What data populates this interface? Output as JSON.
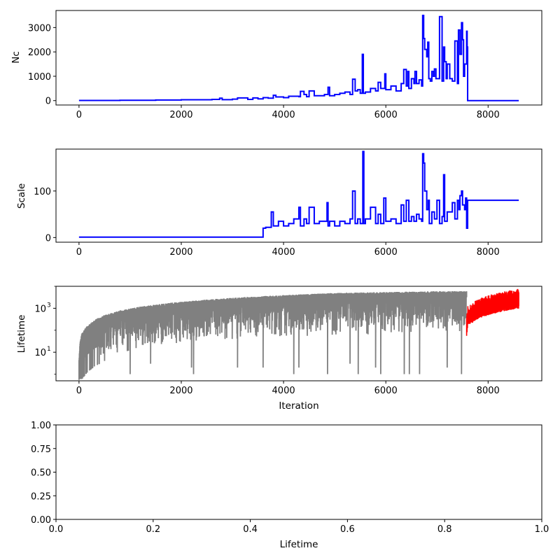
{
  "chart_data": [
    {
      "type": "line",
      "ylabel": "Nc",
      "xlabel": "",
      "xlim": [
        -450,
        9050
      ],
      "ylim": [
        -180,
        3700
      ],
      "xticks": [
        0,
        2000,
        4000,
        6000,
        8000
      ],
      "yticks": [
        0,
        1000,
        2000,
        3000
      ],
      "color": "#0000ff",
      "series": [
        {
          "x": [
            0,
            800,
            1500,
            2000,
            2600,
            2750,
            2800,
            3000,
            3100,
            3300,
            3400,
            3500,
            3600,
            3700,
            3800,
            3850,
            4000,
            4100,
            4300,
            4330,
            4400,
            4450,
            4500,
            4600,
            4800,
            4870,
            4900,
            5000,
            5100,
            5200,
            5300,
            5350,
            5400,
            5450,
            5500,
            5540,
            5560,
            5600,
            5700,
            5800,
            5850,
            5900,
            5980,
            6000,
            6100,
            6200,
            6300,
            6350,
            6400,
            6430,
            6450,
            6500,
            6550,
            6570,
            6600,
            6650,
            6700,
            6720,
            6740,
            6760,
            6800,
            6820,
            6840,
            6870,
            6900,
            6930,
            6950,
            6980,
            7000,
            7050,
            7100,
            7130,
            7150,
            7180,
            7200,
            7250,
            7300,
            7350,
            7400,
            7420,
            7450,
            7480,
            7500,
            7520,
            7540,
            7580,
            7590,
            7600,
            8600
          ],
          "values": [
            5,
            15,
            25,
            35,
            50,
            100,
            40,
            60,
            110,
            50,
            110,
            70,
            120,
            100,
            220,
            150,
            120,
            180,
            160,
            380,
            250,
            160,
            400,
            200,
            250,
            550,
            200,
            250,
            300,
            350,
            250,
            880,
            400,
            450,
            300,
            1900,
            300,
            350,
            500,
            400,
            750,
            500,
            1100,
            450,
            600,
            400,
            700,
            1280,
            600,
            1200,
            500,
            900,
            700,
            1200,
            700,
            850,
            600,
            3500,
            2550,
            2100,
            1800,
            2400,
            900,
            800,
            1200,
            1000,
            1300,
            900,
            900,
            3450,
            800,
            2200,
            1600,
            900,
            1500,
            900,
            800,
            2450,
            700,
            2900,
            1900,
            3200,
            2500,
            1000,
            1500,
            2850,
            2200,
            0,
            0
          ]
        }
      ]
    },
    {
      "type": "line",
      "ylabel": "Scale",
      "xlabel": "",
      "xlim": [
        -450,
        9050
      ],
      "ylim": [
        -10,
        190
      ],
      "xticks": [
        0,
        2000,
        4000,
        6000,
        8000
      ],
      "yticks": [
        0,
        100
      ],
      "color": "#0000ff",
      "series": [
        {
          "x": [
            0,
            3590,
            3600,
            3650,
            3760,
            3800,
            3900,
            4000,
            4100,
            4200,
            4300,
            4330,
            4400,
            4450,
            4500,
            4600,
            4700,
            4850,
            4870,
            4900,
            5000,
            5100,
            5200,
            5300,
            5350,
            5400,
            5450,
            5500,
            5550,
            5570,
            5600,
            5700,
            5800,
            5850,
            5900,
            5960,
            6000,
            6100,
            6200,
            6300,
            6350,
            6400,
            6450,
            6500,
            6550,
            6600,
            6650,
            6700,
            6720,
            6740,
            6760,
            6800,
            6830,
            6850,
            6900,
            6950,
            7000,
            7050,
            7100,
            7130,
            7150,
            7200,
            7300,
            7350,
            7400,
            7430,
            7450,
            7480,
            7500,
            7540,
            7560,
            7580,
            7600,
            8600
          ],
          "values": [
            1,
            1,
            20,
            22,
            55,
            25,
            35,
            25,
            30,
            40,
            65,
            25,
            40,
            30,
            65,
            30,
            35,
            75,
            25,
            35,
            25,
            35,
            30,
            40,
            100,
            30,
            40,
            30,
            185,
            30,
            40,
            65,
            30,
            50,
            30,
            85,
            35,
            40,
            30,
            70,
            35,
            80,
            35,
            45,
            35,
            50,
            40,
            35,
            180,
            160,
            100,
            60,
            80,
            30,
            55,
            40,
            80,
            30,
            45,
            135,
            35,
            55,
            75,
            40,
            80,
            60,
            90,
            100,
            70,
            60,
            85,
            20,
            80,
            80
          ]
        }
      ]
    },
    {
      "type": "line",
      "ylabel": "Lifetime",
      "xlabel": "Iteration",
      "xlim": [
        -450,
        9050
      ],
      "ylim": [
        0.5,
        10000
      ],
      "yscale": "log",
      "xticks": [
        0,
        2000,
        4000,
        6000,
        8000
      ],
      "yticks": [
        10,
        1000
      ],
      "ytick_labels": [
        [
          "10",
          "1"
        ],
        [
          "10",
          "3"
        ]
      ],
      "series": [
        {
          "color": "#808080",
          "envelope_x": [
            0,
            20,
            60,
            150,
            300,
            500,
            800,
            1200,
            1800,
            2500,
            3000,
            3500,
            4000,
            5000,
            6000,
            7000,
            7580
          ],
          "envelope_values": [
            5,
            30,
            80,
            150,
            300,
            500,
            800,
            1200,
            1800,
            2500,
            3000,
            3500,
            4000,
            5000,
            5500,
            6000,
            6000
          ],
          "dips": [
            [
              500,
              4
            ],
            [
              1000,
              1
            ],
            [
              1400,
              3
            ],
            [
              2200,
              2
            ],
            [
              2240,
              1
            ],
            [
              3100,
              2
            ],
            [
              3600,
              2
            ],
            [
              4200,
              1
            ],
            [
              4300,
              2
            ],
            [
              4850,
              1
            ],
            [
              5300,
              3
            ],
            [
              5450,
              1
            ],
            [
              5800,
              2
            ],
            [
              5900,
              1
            ],
            [
              6350,
              1
            ],
            [
              6450,
              1
            ],
            [
              6650,
              1
            ],
            [
              7200,
              2
            ],
            [
              7480,
              1
            ]
          ]
        },
        {
          "color": "#ff0000",
          "x": [
            7580,
            7600,
            7800,
            8000,
            8200,
            8400,
            8600
          ],
          "values": [
            60,
            200,
            400,
            600,
            800,
            1000,
            1200
          ]
        }
      ]
    },
    {
      "type": "scatter",
      "xlabel": "Lifetime",
      "ylabel": "",
      "xlim": [
        0,
        1
      ],
      "ylim": [
        0,
        1
      ],
      "xticks": [
        0.0,
        0.2,
        0.4,
        0.6,
        0.8,
        1.0
      ],
      "yticks": [
        0.0,
        0.25,
        0.5,
        0.75,
        1.0
      ],
      "xtick_labels": [
        "0.0",
        "0.2",
        "0.4",
        "0.6",
        "0.8",
        "1.0"
      ],
      "ytick_labels": [
        "0.00",
        "0.25",
        "0.50",
        "0.75",
        "1.00"
      ],
      "series": []
    }
  ]
}
